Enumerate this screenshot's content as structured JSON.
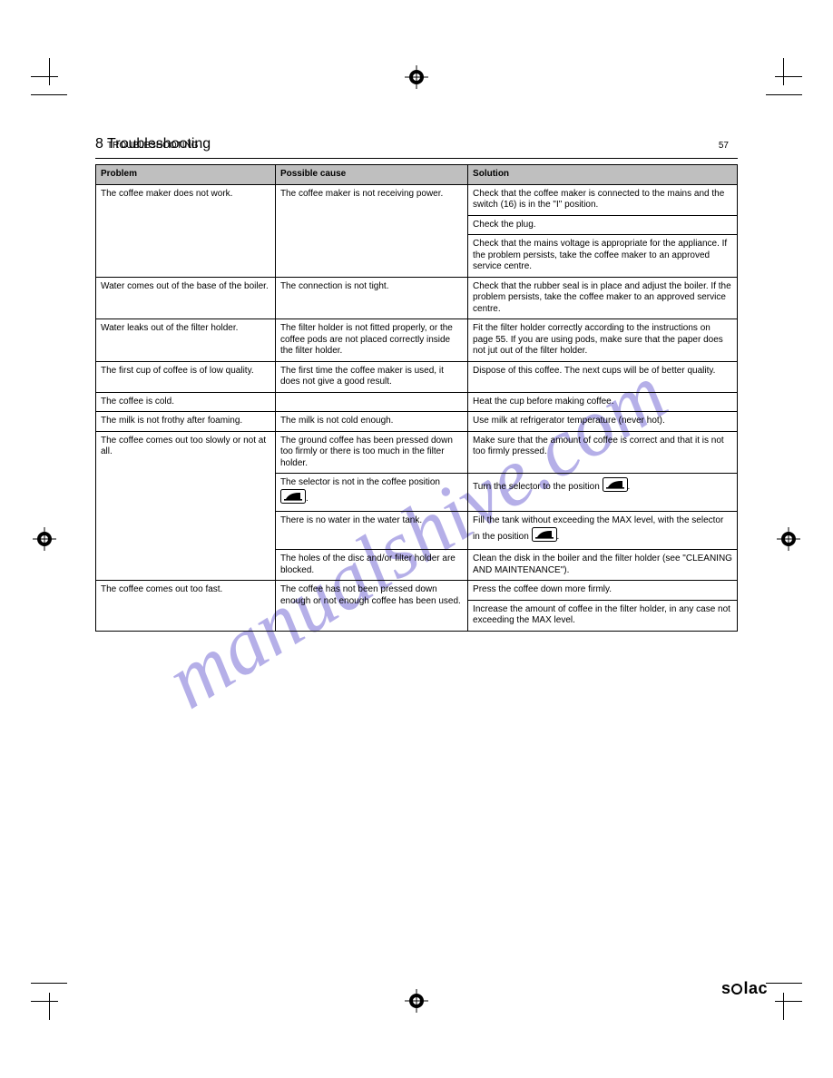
{
  "page_number": "57",
  "header_section_label": "TROUBLESHOOTING",
  "section_title": "8 Troubleshooting",
  "columns": [
    "Problem",
    "Possible cause",
    "Solution"
  ],
  "rows": [
    {
      "problem": "The coffee maker does not work.",
      "cause": "The coffee maker is not receiving power.",
      "solutions": [
        "Check that the coffee maker is connected to the mains and the switch (16) is in the \"I\" position.",
        "Check the plug.",
        "Check that the mains voltage is appropriate for the appliance. If the problem persists, take the coffee maker to an approved service centre."
      ]
    },
    {
      "problem": "Water comes out of the base of the boiler.",
      "cause": "The connection is not tight.",
      "solutions": [
        "Check that the rubber seal is in place and adjust the boiler. If the problem persists, take the coffee maker to an approved service centre."
      ]
    },
    {
      "problem": "Water leaks out of the filter holder.",
      "cause": "The filter holder is not fitted properly, or the coffee pods are not placed correctly inside the filter holder.",
      "solutions": [
        "Fit the filter holder correctly according to the instructions on page 55. If you are using pods, make sure that the paper does not jut out of the filter holder."
      ]
    },
    {
      "problem": "The first cup of coffee is of low quality.",
      "cause": "The first time the coffee maker is used, it does not give a good result.",
      "solutions": [
        "Dispose of this coffee. The next cups will be of better quality."
      ]
    },
    {
      "problem": "The coffee is cold.",
      "cause": "",
      "solutions": [
        "Heat the cup before making coffee."
      ]
    },
    {
      "problem": "The milk is not frothy after foaming.",
      "cause": "The milk is not cold enough.",
      "solutions": [
        "Use milk at refrigerator temperature (never hot)."
      ]
    },
    {
      "problem": {
        "text": "The coffee comes out too slowly or not at all.",
        "rowspan": 4
      },
      "cause": "The ground coffee has been pressed down too firmly or there is too much in the filter holder.",
      "solutions": [
        "Make sure that the amount of coffee is correct and that it is not too firmly pressed."
      ]
    },
    {
      "cause_html": "The selector is not in the coffee position {ICON}.",
      "solutions_html": [
        "Turn the selector to the position {ICON}."
      ]
    },
    {
      "cause": "There is no water in the water tank.",
      "solutions_html": [
        "Fill the tank without exceeding the MAX level, with the selector in the position {ICON}."
      ]
    },
    {
      "cause": "The holes of the disc and/or filter holder are blocked.",
      "solutions": [
        "Clean the disk in the boiler and the filter holder (see \"CLEANING AND MAINTENANCE\")."
      ]
    },
    {
      "problem": "The coffee comes out too fast.",
      "cause": "The coffee has not been pressed down enough or not enough coffee has been used.",
      "solutions": [
        "Press the coffee down more firmly.",
        "Increase the amount of coffee in the filter holder, in any case not exceeding the MAX level."
      ]
    }
  ],
  "watermark": "manualshive.com",
  "brand": "solac",
  "colors": {
    "header_bg": "#bfbfbf",
    "watermark": "#7a6fd6",
    "border": "#000000",
    "text": "#000000",
    "bg": "#ffffff"
  },
  "icon_name": "iron-board-icon",
  "font_sizes": {
    "title": 16,
    "body": 10,
    "footer": 18
  }
}
